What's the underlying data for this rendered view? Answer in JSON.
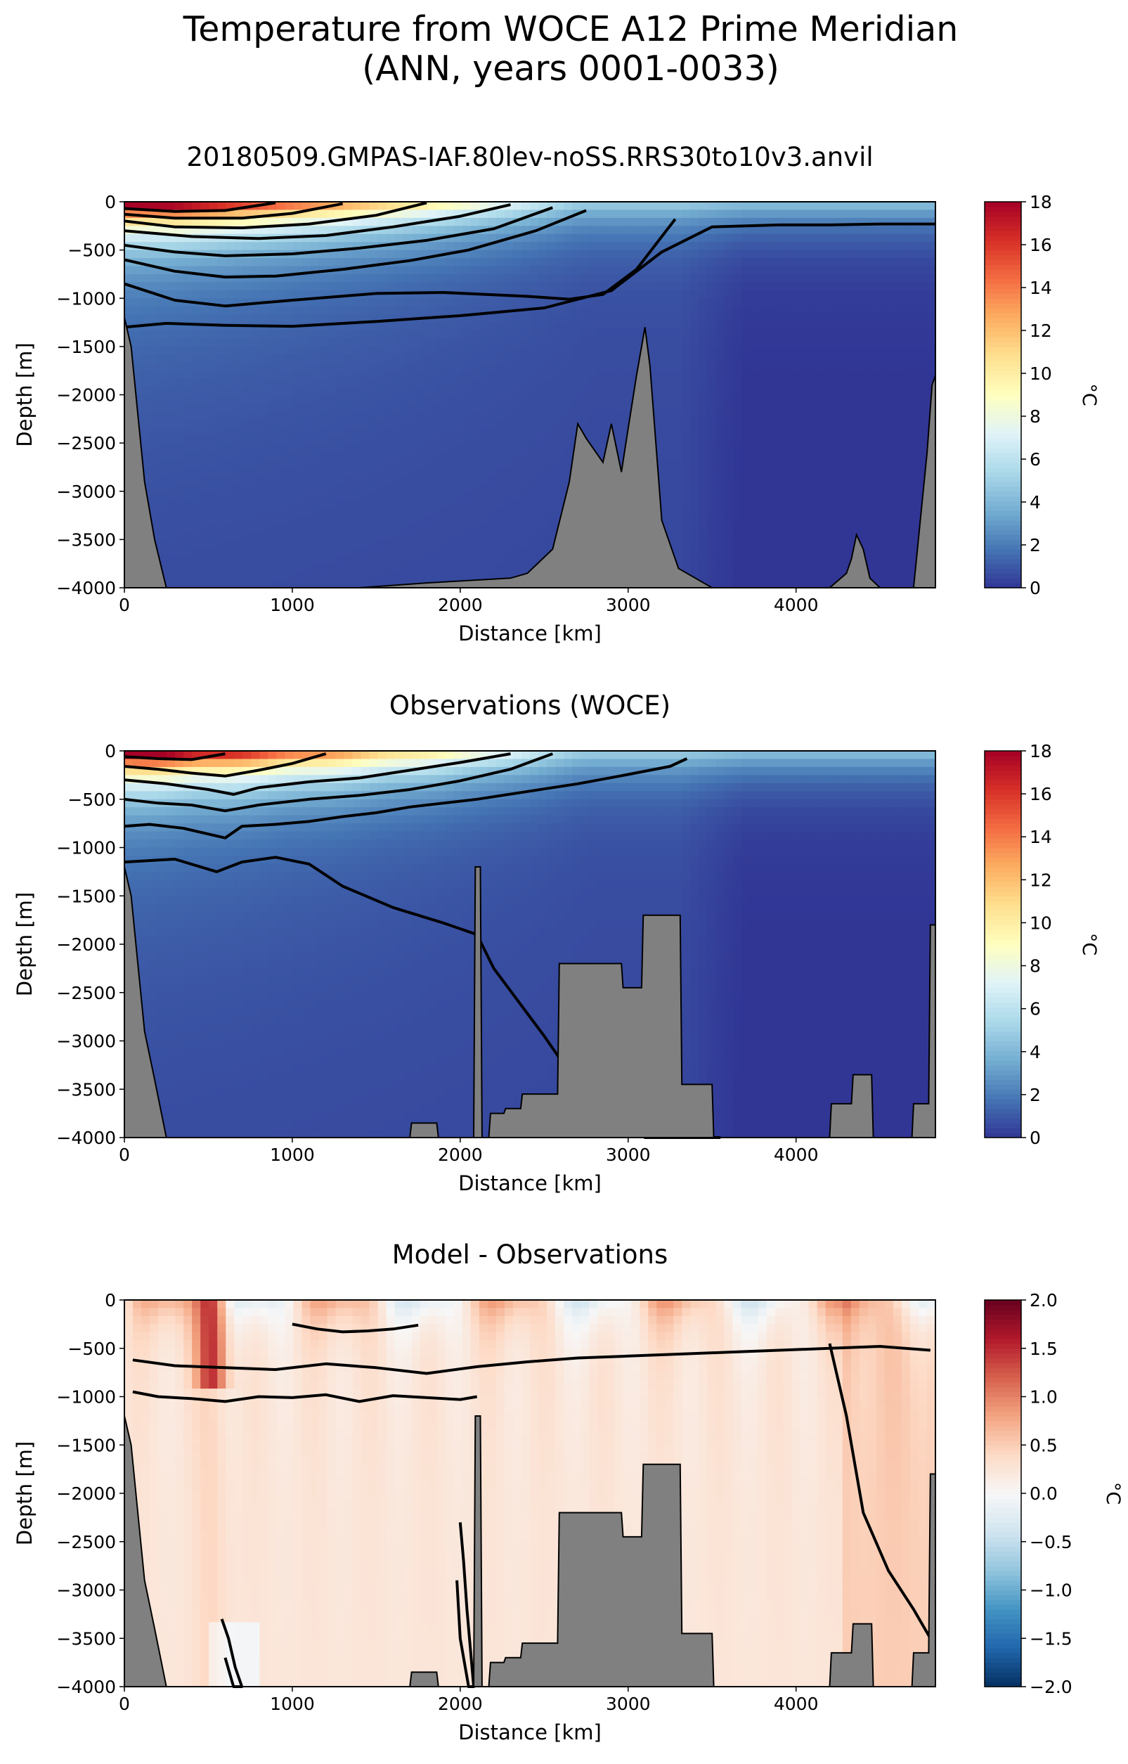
{
  "figure": {
    "title_line1": "Temperature from WOCE A12 Prime Meridian",
    "title_line2": "(ANN, years 0001-0033)"
  },
  "chart_data": [
    {
      "type": "heatmap",
      "title": "20180509.GMPAS-IAF.80lev-noSS.RRS30to10v3.anvil",
      "xlabel": "Distance [km]",
      "ylabel": "Depth [m]",
      "xlim": [
        0,
        4830
      ],
      "ylim": [
        -4000,
        0
      ],
      "xticks": [
        0,
        1000,
        2000,
        3000,
        4000
      ],
      "yticks": [
        0,
        -500,
        -1000,
        -1500,
        -2000,
        -2500,
        -3000,
        -3500,
        -4000
      ],
      "colorbar": {
        "label": "°C",
        "min": 0,
        "max": 18,
        "ticks": [
          0,
          2,
          4,
          6,
          8,
          10,
          12,
          14,
          16,
          18
        ],
        "colormap": "RdYlBu_r"
      },
      "contours": [
        {
          "level": 1,
          "x": [
            0,
            250,
            600,
            1000,
            1500,
            2000,
            2500,
            2900,
            3200,
            3500,
            3900,
            4200,
            4500,
            4830
          ],
          "depth": [
            -1300,
            -1260,
            -1280,
            -1290,
            -1240,
            -1180,
            -1100,
            -920,
            -520,
            -260,
            -240,
            -240,
            -230,
            -230
          ]
        },
        {
          "level": 2,
          "x": [
            0,
            300,
            600,
            1000,
            1500,
            1900,
            2150,
            2400,
            2650,
            2850,
            3050,
            3280
          ],
          "depth": [
            -850,
            -1020,
            -1080,
            -1020,
            -950,
            -940,
            -960,
            -980,
            -1010,
            -960,
            -700,
            -180
          ]
        },
        {
          "level": 4,
          "x": [
            0,
            300,
            600,
            900,
            1300,
            1700,
            2050,
            2450,
            2750
          ],
          "depth": [
            -600,
            -720,
            -780,
            -770,
            -700,
            -610,
            -500,
            -300,
            -90
          ]
        },
        {
          "level": 6,
          "x": [
            0,
            300,
            600,
            1000,
            1400,
            1800,
            2200,
            2550
          ],
          "depth": [
            -450,
            -520,
            -560,
            -540,
            -480,
            -400,
            -280,
            -60
          ]
        },
        {
          "level": 8,
          "x": [
            0,
            400,
            800,
            1200,
            1600,
            2000,
            2300
          ],
          "depth": [
            -300,
            -360,
            -380,
            -350,
            -260,
            -150,
            -30
          ]
        },
        {
          "level": 10,
          "x": [
            0,
            300,
            700,
            1100,
            1500,
            1800
          ],
          "depth": [
            -200,
            -260,
            -270,
            -230,
            -140,
            -10
          ]
        },
        {
          "level": 12,
          "x": [
            0,
            300,
            700,
            1000,
            1300
          ],
          "depth": [
            -130,
            -170,
            -170,
            -120,
            -20
          ]
        },
        {
          "level": 14,
          "x": [
            0,
            300,
            600,
            900
          ],
          "depth": [
            -70,
            -100,
            -90,
            -10
          ]
        }
      ],
      "bathymetry": {
        "x": [
          0,
          40,
          80,
          120,
          180,
          250,
          400,
          800,
          1400,
          1800,
          2300,
          2400,
          2550,
          2650,
          2700,
          2750,
          2850,
          2900,
          2960,
          3000,
          3050,
          3080,
          3100,
          3130,
          3200,
          3300,
          3500,
          3800,
          4200,
          4300,
          4330,
          4360,
          4400,
          4440,
          4500,
          4700,
          4780,
          4810,
          4830
        ],
        "depth": [
          -1200,
          -1500,
          -2200,
          -2900,
          -3500,
          -4000,
          -4000,
          -4000,
          -4000,
          -3950,
          -3900,
          -3850,
          -3600,
          -2900,
          -2300,
          -2450,
          -2700,
          -2300,
          -2800,
          -2350,
          -1800,
          -1500,
          -1300,
          -1700,
          -3300,
          -3800,
          -4000,
          -4000,
          -4000,
          -3850,
          -3700,
          -3450,
          -3600,
          -3900,
          -4000,
          -4000,
          -2600,
          -1900,
          -1800
        ]
      }
    },
    {
      "type": "heatmap",
      "title": "Observations (WOCE)",
      "xlabel": "Distance [km]",
      "ylabel": "Depth [m]",
      "xlim": [
        0,
        4830
      ],
      "ylim": [
        -4000,
        0
      ],
      "xticks": [
        0,
        1000,
        2000,
        3000,
        4000
      ],
      "yticks": [
        0,
        -500,
        -1000,
        -1500,
        -2000,
        -2500,
        -3000,
        -3500,
        -4000
      ],
      "colorbar": {
        "label": "°C",
        "min": 0,
        "max": 18,
        "ticks": [
          0,
          2,
          4,
          6,
          8,
          10,
          12,
          14,
          16,
          18
        ],
        "colormap": "RdYlBu_r"
      },
      "contours": [
        {
          "level": 1,
          "x": [
            0,
            300,
            550,
            700,
            900,
            1100,
            1300,
            1600,
            1900,
            2100,
            2200,
            2500,
            2800,
            3100,
            3300,
            3550
          ],
          "depth": [
            -1150,
            -1120,
            -1250,
            -1150,
            -1100,
            -1170,
            -1400,
            -1620,
            -1780,
            -1900,
            -2250,
            -2950,
            -3700,
            -4000,
            -4000,
            -4000
          ]
        },
        {
          "level": 2,
          "x": [
            0,
            150,
            350,
            500,
            600,
            700,
            900,
            1100,
            1300,
            1500,
            1700,
            1900,
            2100,
            2400,
            2700,
            2950,
            3250,
            3350
          ],
          "depth": [
            -780,
            -760,
            -800,
            -860,
            -900,
            -780,
            -760,
            -730,
            -680,
            -640,
            -580,
            -540,
            -500,
            -420,
            -340,
            -260,
            -160,
            -80
          ]
        },
        {
          "level": 4,
          "x": [
            0,
            200,
            400,
            600,
            800,
            1100,
            1400,
            1700,
            2000,
            2300,
            2550
          ],
          "depth": [
            -500,
            -540,
            -560,
            -620,
            -560,
            -500,
            -460,
            -400,
            -310,
            -190,
            -30
          ]
        },
        {
          "level": 8,
          "x": [
            0,
            250,
            500,
            650,
            800,
            1100,
            1400,
            1700,
            2000,
            2300
          ],
          "depth": [
            -300,
            -340,
            -400,
            -450,
            -380,
            -320,
            -280,
            -200,
            -120,
            -30
          ]
        },
        {
          "level": 12,
          "x": [
            0,
            200,
            400,
            600,
            800,
            1000,
            1200
          ],
          "depth": [
            -160,
            -190,
            -230,
            -260,
            -200,
            -130,
            -30
          ]
        },
        {
          "level": 16,
          "x": [
            0,
            200,
            400,
            600
          ],
          "depth": [
            -60,
            -80,
            -90,
            -30
          ]
        }
      ],
      "bathymetry": {
        "x": [
          0,
          40,
          80,
          120,
          180,
          250,
          1700,
          1710,
          1860,
          1870,
          2080,
          2090,
          2120,
          2130,
          2170,
          2180,
          2260,
          2270,
          2360,
          2370,
          2580,
          2590,
          2700,
          2710,
          2960,
          2970,
          3080,
          3090,
          3310,
          3320,
          3500,
          3510,
          4200,
          4210,
          4330,
          4340,
          4450,
          4460,
          4690,
          4700,
          4790,
          4800,
          4830
        ],
        "depth": [
          -1200,
          -1500,
          -2200,
          -2900,
          -3400,
          -4000,
          -4000,
          -3850,
          -3850,
          -4000,
          -4000,
          -1200,
          -1200,
          -4000,
          -4000,
          -3750,
          -3750,
          -3700,
          -3700,
          -3550,
          -3550,
          -2200,
          -2200,
          -2200,
          -2200,
          -2450,
          -2450,
          -1700,
          -1700,
          -3450,
          -3450,
          -4000,
          -4000,
          -3650,
          -3650,
          -3350,
          -3350,
          -4000,
          -4000,
          -3650,
          -3650,
          -1800,
          -1800
        ]
      }
    },
    {
      "type": "heatmap",
      "title": "Model - Observations",
      "xlabel": "Distance [km]",
      "ylabel": "Depth [m]",
      "xlim": [
        0,
        4830
      ],
      "ylim": [
        -4000,
        0
      ],
      "xticks": [
        0,
        1000,
        2000,
        3000,
        4000
      ],
      "yticks": [
        0,
        -500,
        -1000,
        -1500,
        -2000,
        -2500,
        -3000,
        -3500,
        -4000
      ],
      "colorbar": {
        "label": "°C",
        "min": -2.0,
        "max": 2.0,
        "ticks": [
          "-2.0",
          "-1.5",
          "-1.0",
          "-0.5",
          "0.0",
          "0.5",
          "1.0",
          "1.5",
          "2.0"
        ],
        "colormap": "RdBu_r"
      },
      "contours": [
        {
          "level": 0.25,
          "x": [
            50,
            200,
            400,
            600,
            800,
            1000,
            1200,
            1400,
            1600,
            1800,
            2000,
            2100
          ],
          "depth": [
            -950,
            -1000,
            -1020,
            -1050,
            -1000,
            -1010,
            -980,
            -1050,
            -990,
            -1010,
            -1030,
            -1000
          ]
        },
        {
          "level": 0.5,
          "x": [
            50,
            300,
            600,
            900,
            1200,
            1500,
            1800,
            2100,
            2400,
            2700,
            3000,
            3300,
            3600,
            3900,
            4200,
            4500,
            4800
          ],
          "depth": [
            -620,
            -680,
            -700,
            -720,
            -660,
            -700,
            -760,
            -690,
            -640,
            -600,
            -580,
            -560,
            -540,
            -520,
            -500,
            -480,
            -520
          ]
        },
        {
          "level": -0.25,
          "x": [
            1000,
            1150,
            1300,
            1450,
            1600,
            1750
          ],
          "depth": [
            -250,
            -300,
            -330,
            -320,
            -300,
            -260
          ]
        },
        {
          "level": 0.0,
          "x": [
            4200,
            4300,
            4400,
            4550,
            4700,
            4800
          ],
          "depth": [
            -450,
            -1200,
            -2200,
            -2800,
            -3200,
            -3500
          ]
        },
        {
          "level": 0.0,
          "x": [
            2000,
            2020,
            2040,
            2060,
            2080,
            2050,
            2000,
            1980
          ],
          "depth": [
            -2300,
            -2700,
            -3200,
            -3600,
            -4000,
            -4000,
            -3500,
            -2900
          ]
        },
        {
          "level": 0.0,
          "x": [
            580,
            620,
            660,
            700,
            650,
            600
          ],
          "depth": [
            -3300,
            -3500,
            -3800,
            -4000,
            -4000,
            -3700
          ]
        }
      ],
      "bathymetry": {
        "x": [
          0,
          40,
          80,
          120,
          180,
          250,
          1700,
          1710,
          1860,
          1870,
          2080,
          2090,
          2120,
          2130,
          2170,
          2180,
          2260,
          2270,
          2360,
          2370,
          2580,
          2590,
          2700,
          2710,
          2960,
          2970,
          3080,
          3090,
          3310,
          3320,
          3500,
          3510,
          4200,
          4210,
          4330,
          4340,
          4450,
          4460,
          4690,
          4700,
          4790,
          4800,
          4830
        ],
        "depth": [
          -1200,
          -1500,
          -2200,
          -2900,
          -3400,
          -4000,
          -4000,
          -3850,
          -3850,
          -4000,
          -4000,
          -1200,
          -1200,
          -4000,
          -4000,
          -3750,
          -3750,
          -3700,
          -3700,
          -3550,
          -3550,
          -2200,
          -2200,
          -2200,
          -2200,
          -2450,
          -2450,
          -1700,
          -1700,
          -3450,
          -3450,
          -4000,
          -4000,
          -3650,
          -3650,
          -3350,
          -3350,
          -4000,
          -4000,
          -3650,
          -3650,
          -1800,
          -1800
        ]
      }
    }
  ]
}
